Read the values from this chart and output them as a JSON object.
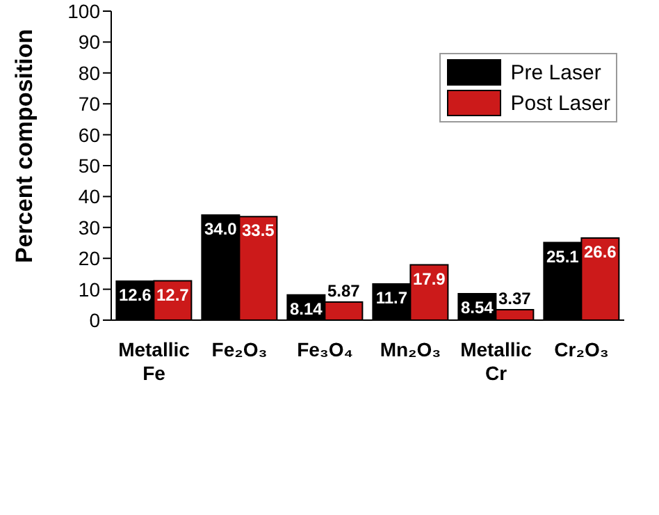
{
  "chart_data": {
    "type": "bar",
    "ylabel": "Percent composition",
    "categories": [
      "Metallic Fe",
      "Fe₂O₃",
      "Fe₃O₄",
      "Mn₂O₃",
      "Metallic Cr",
      "Cr₂O₃"
    ],
    "series": [
      {
        "name": "Pre Laser",
        "color": "#000000",
        "values": [
          12.6,
          34.0,
          8.14,
          11.7,
          8.54,
          25.1
        ],
        "value_labels": [
          "12.6",
          "34.0",
          "8.14",
          "11.7",
          "8.54",
          "25.1"
        ]
      },
      {
        "name": "Post Laser",
        "color": "#cc1a1a",
        "values": [
          12.7,
          33.5,
          5.87,
          17.9,
          3.37,
          26.6
        ],
        "value_labels": [
          "12.7",
          "33.5",
          "5.87",
          "17.9",
          "3.37",
          "26.6"
        ]
      }
    ],
    "ylim": [
      0,
      100
    ],
    "yticks": [
      0,
      10,
      20,
      30,
      40,
      50,
      60,
      70,
      80,
      90,
      100
    ],
    "legend": "top right",
    "grid": false
  }
}
